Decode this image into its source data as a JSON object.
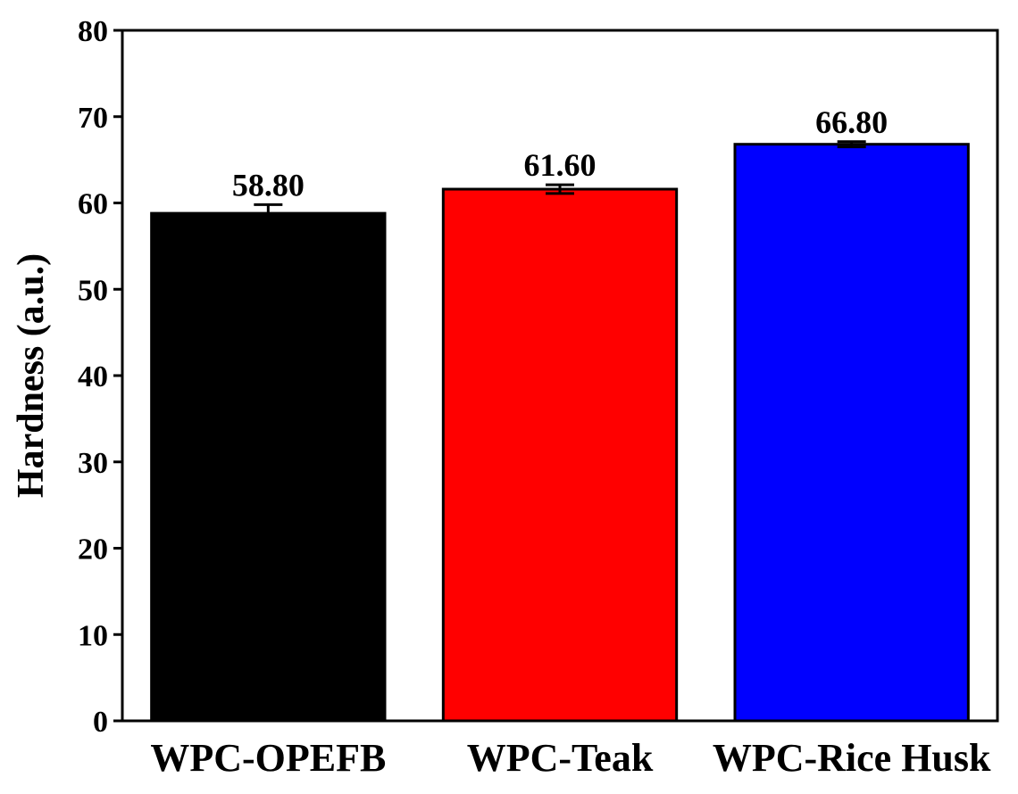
{
  "chart_data": {
    "type": "bar",
    "title": "",
    "xlabel": "",
    "ylabel": "Hardness (a.u.)",
    "ylim": [
      0,
      80
    ],
    "yticks": [
      0,
      10,
      20,
      30,
      40,
      50,
      60,
      70,
      80
    ],
    "categories": [
      "WPC-OPEFB",
      "WPC-Teak",
      "WPC-Rice Husk"
    ],
    "values": [
      58.8,
      61.6,
      66.8
    ],
    "errors": [
      1.0,
      0.5,
      0.3
    ],
    "data_labels": [
      "58.80",
      "61.60",
      "66.80"
    ],
    "colors": [
      "#000000",
      "#ff0000",
      "#0000ff"
    ],
    "grid": false,
    "legend": "none"
  }
}
